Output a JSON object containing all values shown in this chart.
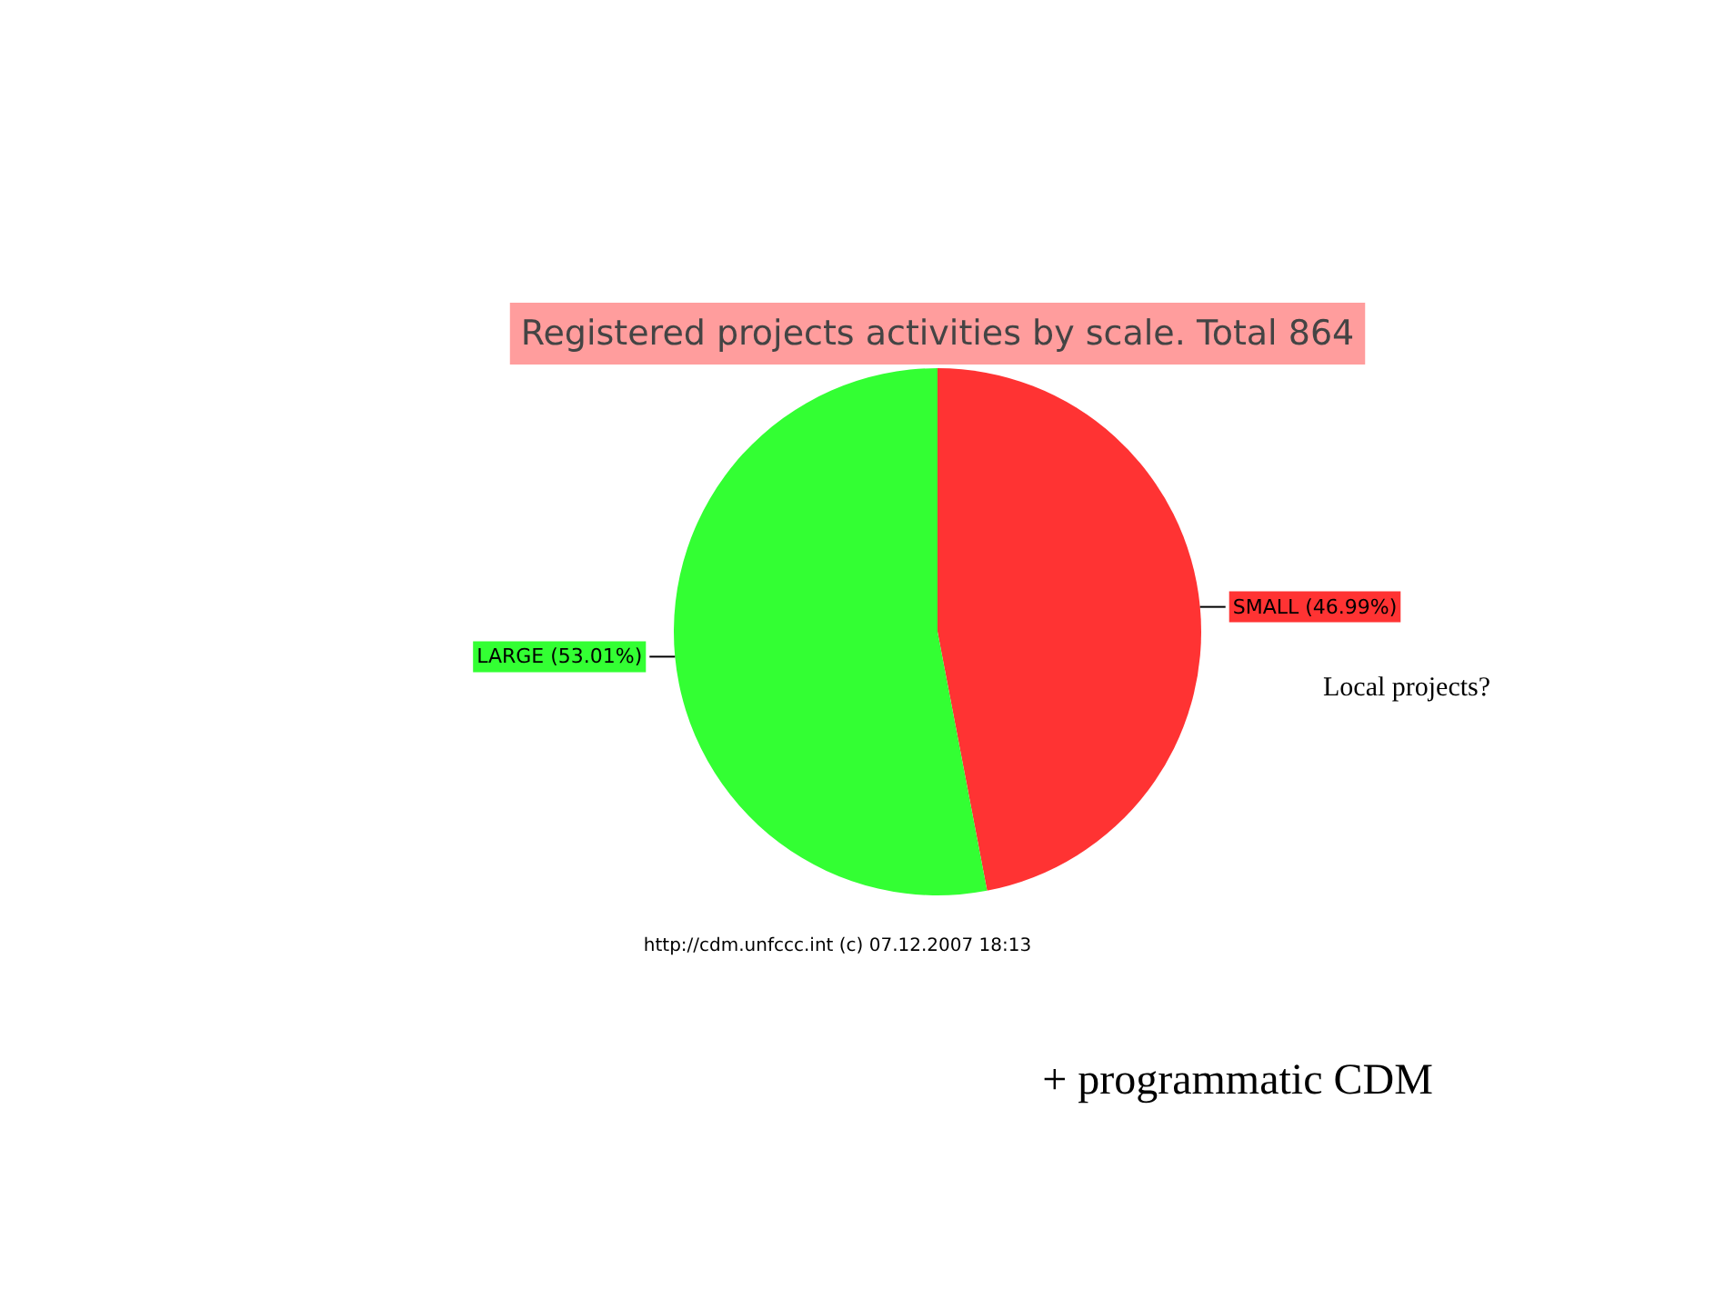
{
  "chart_data": {
    "type": "pie",
    "title": "Registered projects activities by scale. Total 864",
    "categories": [
      "SMALL (46.99%)",
      "LARGE (53.01%)"
    ],
    "values": [
      46.99,
      53.01
    ],
    "colors": [
      "#ff3333",
      "#33ff33"
    ],
    "annotations": [
      "http://cdm.unfccc.int (c) 07.12.2007 18:13",
      "Local projects?",
      "+ programmatic CDM"
    ]
  }
}
